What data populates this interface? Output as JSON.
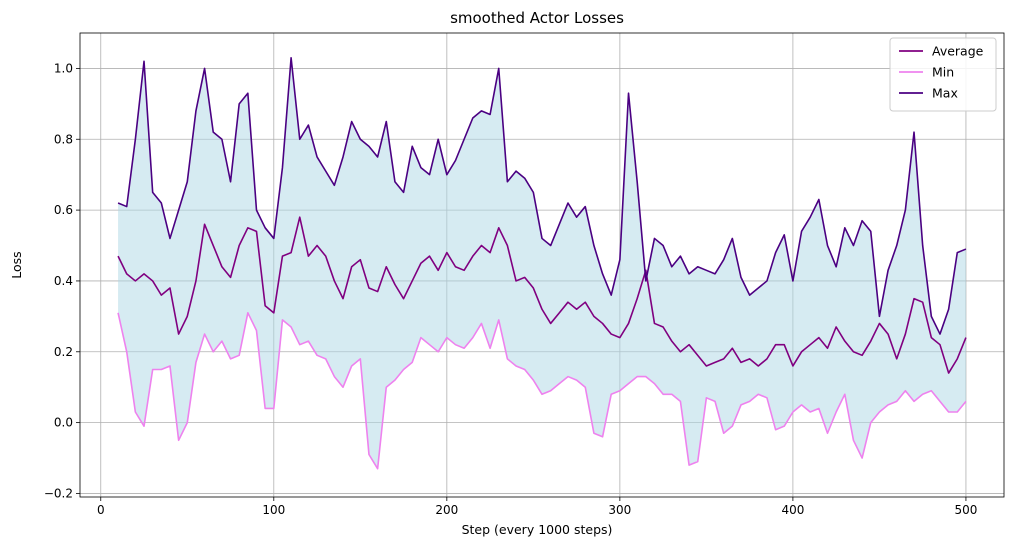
{
  "chart_data": {
    "type": "line",
    "title": "smoothed Actor Losses",
    "xlabel": "Step (every 1000 steps)",
    "ylabel": "Loss",
    "xlim": [
      -12,
      522
    ],
    "ylim": [
      -0.21,
      1.1
    ],
    "xticks": [
      0,
      100,
      200,
      300,
      400,
      500
    ],
    "yticks": [
      -0.2,
      0.0,
      0.2,
      0.4,
      0.6,
      0.8,
      1.0
    ],
    "ytick_labels": [
      "−0.2",
      "0.0",
      "0.2",
      "0.4",
      "0.6",
      "0.8",
      "1.0"
    ],
    "grid": true,
    "legend_position": "top-right",
    "fill_between": {
      "lower": "Min",
      "upper": "Max",
      "color": "#add8e6",
      "alpha": 0.5
    },
    "x": [
      10,
      15,
      20,
      25,
      30,
      35,
      40,
      45,
      50,
      55,
      60,
      65,
      70,
      75,
      80,
      85,
      90,
      95,
      100,
      105,
      110,
      115,
      120,
      125,
      130,
      135,
      140,
      145,
      150,
      155,
      160,
      165,
      170,
      175,
      180,
      185,
      190,
      195,
      200,
      205,
      210,
      215,
      220,
      225,
      230,
      235,
      240,
      245,
      250,
      255,
      260,
      265,
      270,
      275,
      280,
      285,
      290,
      295,
      300,
      305,
      310,
      315,
      320,
      325,
      330,
      335,
      340,
      345,
      350,
      355,
      360,
      365,
      370,
      375,
      380,
      385,
      390,
      395,
      400,
      405,
      410,
      415,
      420,
      425,
      430,
      435,
      440,
      445,
      450,
      455,
      460,
      465,
      470,
      475,
      480,
      485,
      490,
      495,
      500
    ],
    "series": [
      {
        "name": "Average",
        "color": "#800080",
        "values": [
          0.47,
          0.42,
          0.4,
          0.42,
          0.4,
          0.36,
          0.38,
          0.25,
          0.3,
          0.4,
          0.56,
          0.5,
          0.44,
          0.41,
          0.5,
          0.55,
          0.54,
          0.33,
          0.31,
          0.47,
          0.48,
          0.58,
          0.47,
          0.5,
          0.47,
          0.4,
          0.35,
          0.44,
          0.46,
          0.38,
          0.37,
          0.44,
          0.39,
          0.35,
          0.4,
          0.45,
          0.47,
          0.43,
          0.48,
          0.44,
          0.43,
          0.47,
          0.5,
          0.48,
          0.55,
          0.5,
          0.4,
          0.41,
          0.38,
          0.32,
          0.28,
          0.31,
          0.34,
          0.32,
          0.34,
          0.3,
          0.28,
          0.25,
          0.24,
          0.28,
          0.35,
          0.43,
          0.28,
          0.27,
          0.23,
          0.2,
          0.22,
          0.19,
          0.16,
          0.17,
          0.18,
          0.21,
          0.17,
          0.18,
          0.16,
          0.18,
          0.22,
          0.22,
          0.16,
          0.2,
          0.22,
          0.24,
          0.21,
          0.27,
          0.23,
          0.2,
          0.19,
          0.23,
          0.28,
          0.25,
          0.18,
          0.25,
          0.35,
          0.34,
          0.24,
          0.22,
          0.14,
          0.18,
          0.24
        ]
      },
      {
        "name": "Min",
        "color": "#ee82ee",
        "values": [
          0.31,
          0.2,
          0.03,
          -0.01,
          0.15,
          0.15,
          0.16,
          -0.05,
          0.0,
          0.17,
          0.25,
          0.2,
          0.23,
          0.18,
          0.19,
          0.31,
          0.26,
          0.04,
          0.04,
          0.29,
          0.27,
          0.22,
          0.23,
          0.19,
          0.18,
          0.13,
          0.1,
          0.16,
          0.18,
          -0.09,
          -0.13,
          0.1,
          0.12,
          0.15,
          0.17,
          0.24,
          0.22,
          0.2,
          0.24,
          0.22,
          0.21,
          0.24,
          0.28,
          0.21,
          0.29,
          0.18,
          0.16,
          0.15,
          0.12,
          0.08,
          0.09,
          0.11,
          0.13,
          0.12,
          0.1,
          -0.03,
          -0.04,
          0.08,
          0.09,
          0.11,
          0.13,
          0.13,
          0.11,
          0.08,
          0.08,
          0.06,
          -0.12,
          -0.11,
          0.07,
          0.06,
          -0.03,
          -0.01,
          0.05,
          0.06,
          0.08,
          0.07,
          -0.02,
          -0.01,
          0.03,
          0.05,
          0.03,
          0.04,
          -0.03,
          0.03,
          0.08,
          -0.05,
          -0.1,
          0.0,
          0.03,
          0.05,
          0.06,
          0.09,
          0.06,
          0.08,
          0.09,
          0.06,
          0.03,
          0.03,
          0.06
        ]
      },
      {
        "name": "Max",
        "color": "#4b0082",
        "values": [
          0.62,
          0.61,
          0.8,
          1.02,
          0.65,
          0.62,
          0.52,
          0.6,
          0.68,
          0.88,
          1.0,
          0.82,
          0.8,
          0.68,
          0.9,
          0.93,
          0.6,
          0.55,
          0.52,
          0.72,
          1.03,
          0.8,
          0.84,
          0.75,
          0.71,
          0.67,
          0.75,
          0.85,
          0.8,
          0.78,
          0.75,
          0.85,
          0.68,
          0.65,
          0.78,
          0.72,
          0.7,
          0.8,
          0.7,
          0.74,
          0.8,
          0.86,
          0.88,
          0.87,
          1.0,
          0.68,
          0.71,
          0.69,
          0.65,
          0.52,
          0.5,
          0.56,
          0.62,
          0.58,
          0.61,
          0.5,
          0.42,
          0.36,
          0.46,
          0.93,
          0.68,
          0.4,
          0.52,
          0.5,
          0.44,
          0.47,
          0.42,
          0.44,
          0.43,
          0.42,
          0.46,
          0.52,
          0.41,
          0.36,
          0.38,
          0.4,
          0.48,
          0.53,
          0.4,
          0.54,
          0.58,
          0.63,
          0.5,
          0.44,
          0.55,
          0.5,
          0.57,
          0.54,
          0.3,
          0.43,
          0.5,
          0.6,
          0.82,
          0.5,
          0.3,
          0.25,
          0.32,
          0.48,
          0.49
        ]
      }
    ]
  }
}
